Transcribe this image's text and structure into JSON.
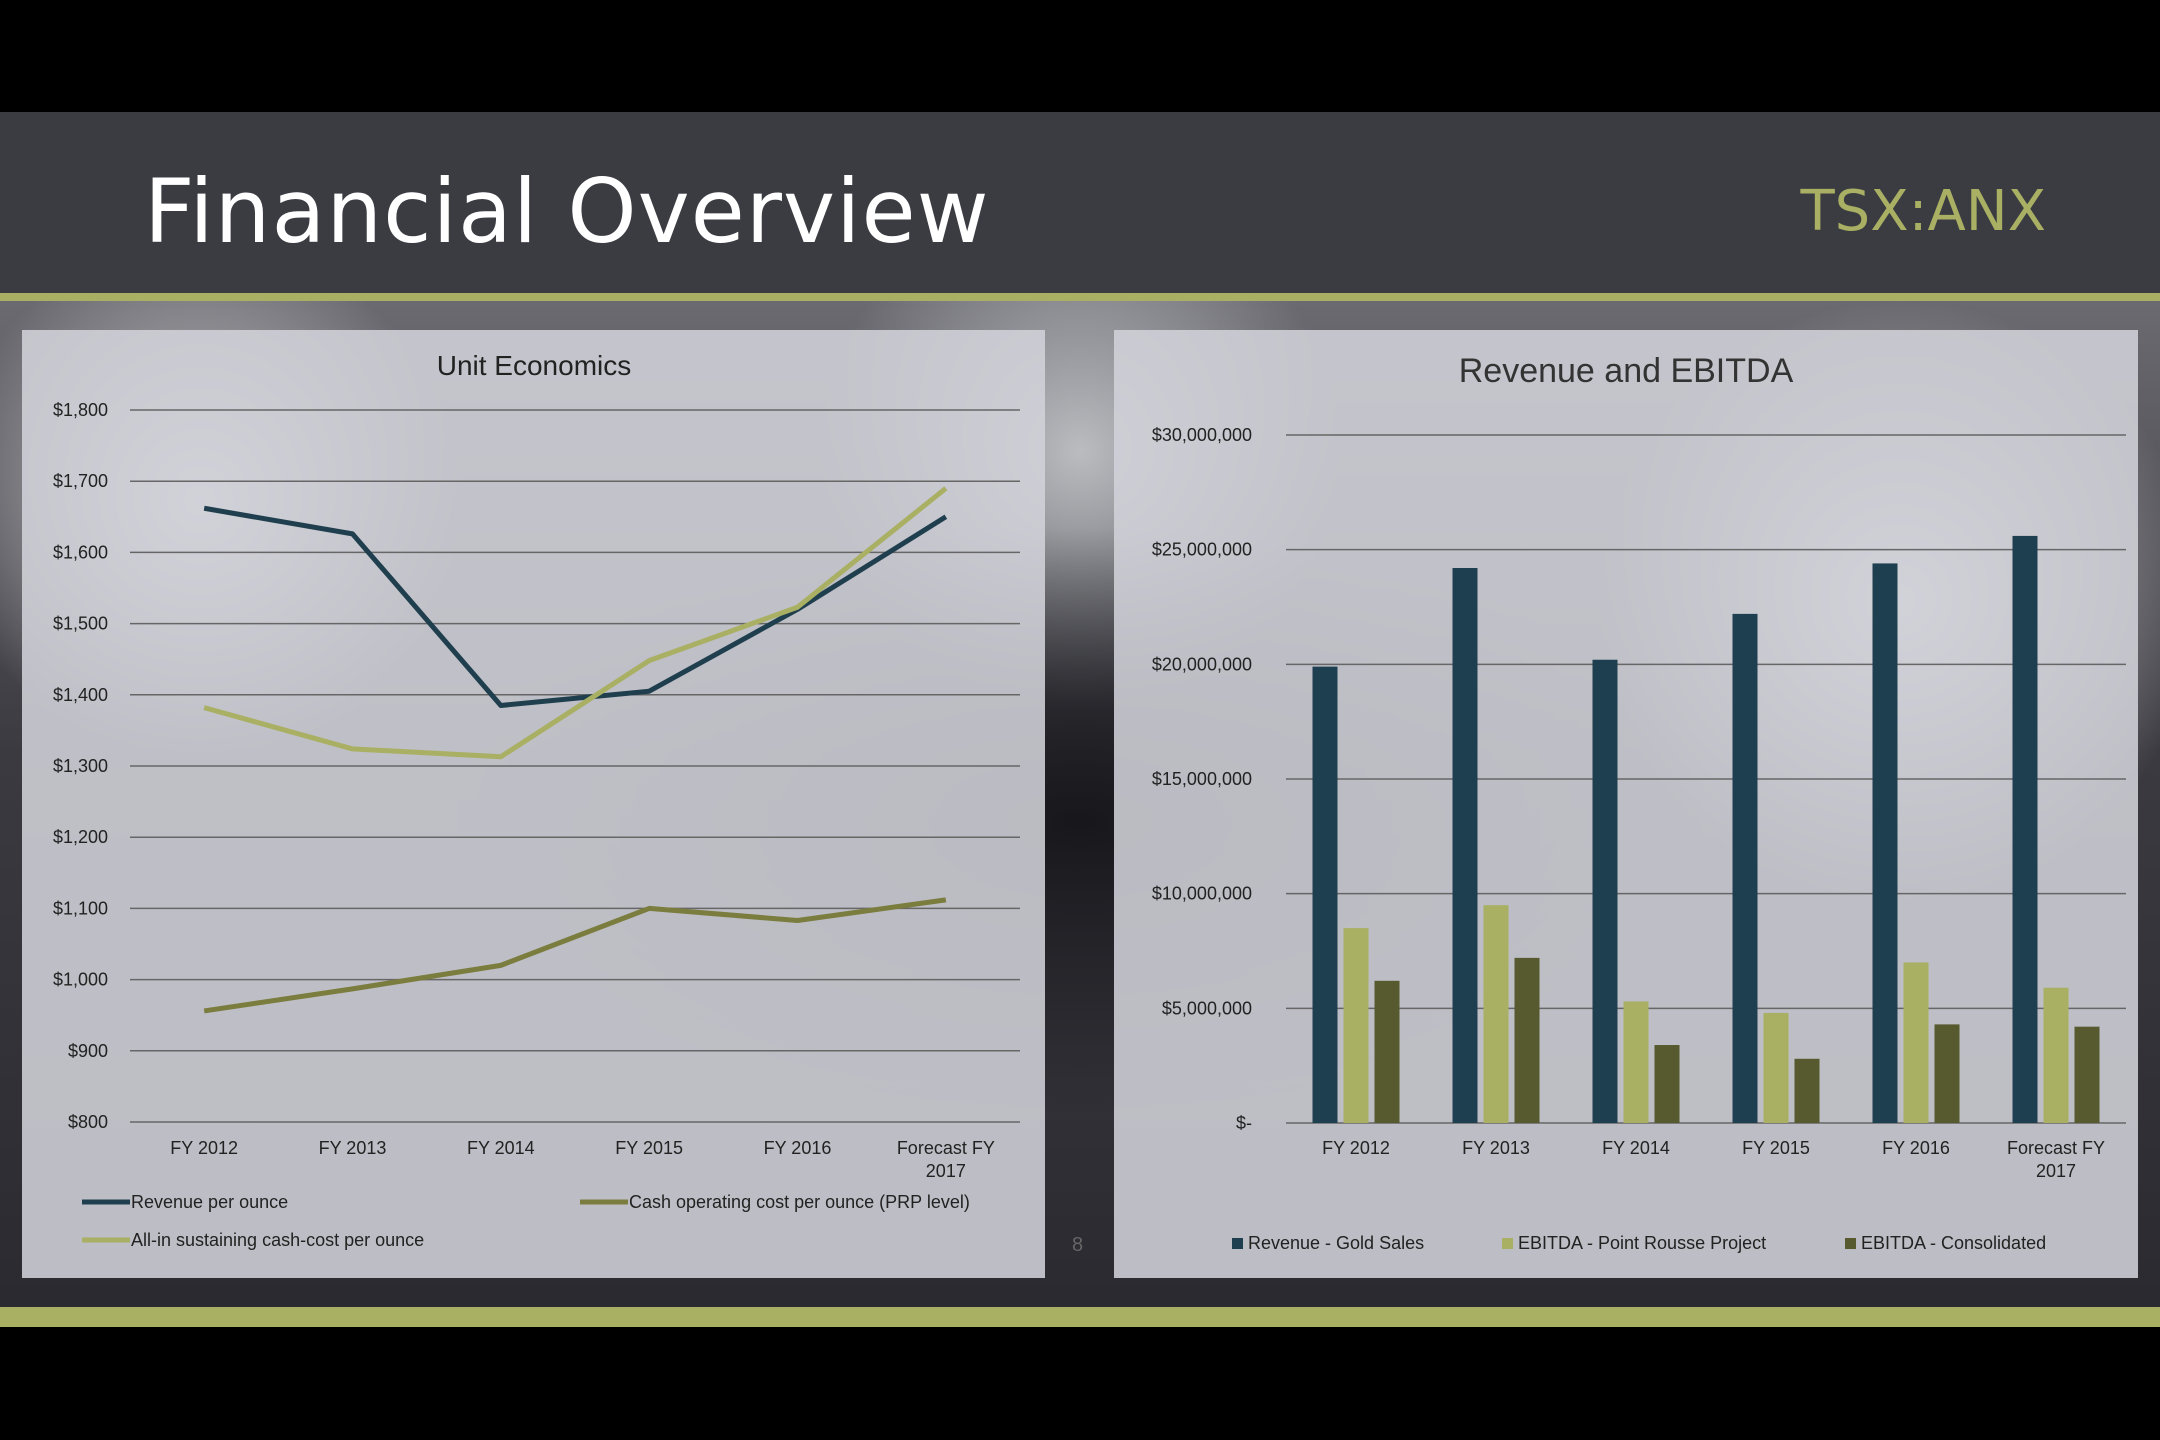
{
  "slide": {
    "title": "Financial Overview",
    "ticker": "TSX:ANX",
    "page_number": "8",
    "colors": {
      "header": "#3b3c41",
      "accent": "#a9b063"
    }
  },
  "chart_data": [
    {
      "type": "line",
      "title": "Unit Economics",
      "categories": [
        "FY 2012",
        "FY 2013",
        "FY 2014",
        "FY 2015",
        "FY 2016",
        "Forecast FY 2017"
      ],
      "y_ticks": [
        "$800",
        "$900",
        "$1,000",
        "$1,100",
        "$1,200",
        "$1,300",
        "$1,400",
        "$1,500",
        "$1,600",
        "$1,700",
        "$1,800"
      ],
      "ylim": [
        800,
        1800
      ],
      "grid": true,
      "legend_position": "bottom",
      "series": [
        {
          "name": "Revenue per ounce",
          "color": "#1f3f4e",
          "values": [
            1662,
            1626,
            1385,
            1405,
            1520,
            1650
          ]
        },
        {
          "name": "Cash operating cost per ounce (PRP level)",
          "color": "#7a7d3e",
          "values": [
            956,
            987,
            1020,
            1100,
            1083,
            1112
          ]
        },
        {
          "name": "All-in sustaining cash-cost per ounce",
          "color": "#a9b063",
          "values": [
            1382,
            1324,
            1313,
            1448,
            1523,
            1690
          ]
        }
      ]
    },
    {
      "type": "bar",
      "title": "Revenue and EBITDA",
      "categories": [
        "FY 2012",
        "FY 2013",
        "FY 2014",
        "FY 2015",
        "FY 2016",
        "Forecast FY 2017"
      ],
      "y_ticks": [
        "$-",
        "$5,000,000",
        "$10,000,000",
        "$15,000,000",
        "$20,000,000",
        "$25,000,000",
        "$30,000,000"
      ],
      "ylim": [
        0,
        30000000
      ],
      "grid": true,
      "legend_position": "bottom",
      "series": [
        {
          "name": "Revenue - Gold Sales",
          "color": "#1e3f4f",
          "values": [
            19900000,
            24200000,
            20200000,
            22200000,
            24400000,
            25600000
          ]
        },
        {
          "name": "EBITDA - Point Rousse Project",
          "color": "#a9b063",
          "values": [
            8500000,
            9500000,
            5300000,
            4800000,
            7000000,
            5900000
          ]
        },
        {
          "name": "EBITDA - Consolidated",
          "color": "#565a2e",
          "values": [
            6200000,
            7200000,
            3400000,
            2800000,
            4300000,
            4200000
          ]
        }
      ]
    }
  ]
}
